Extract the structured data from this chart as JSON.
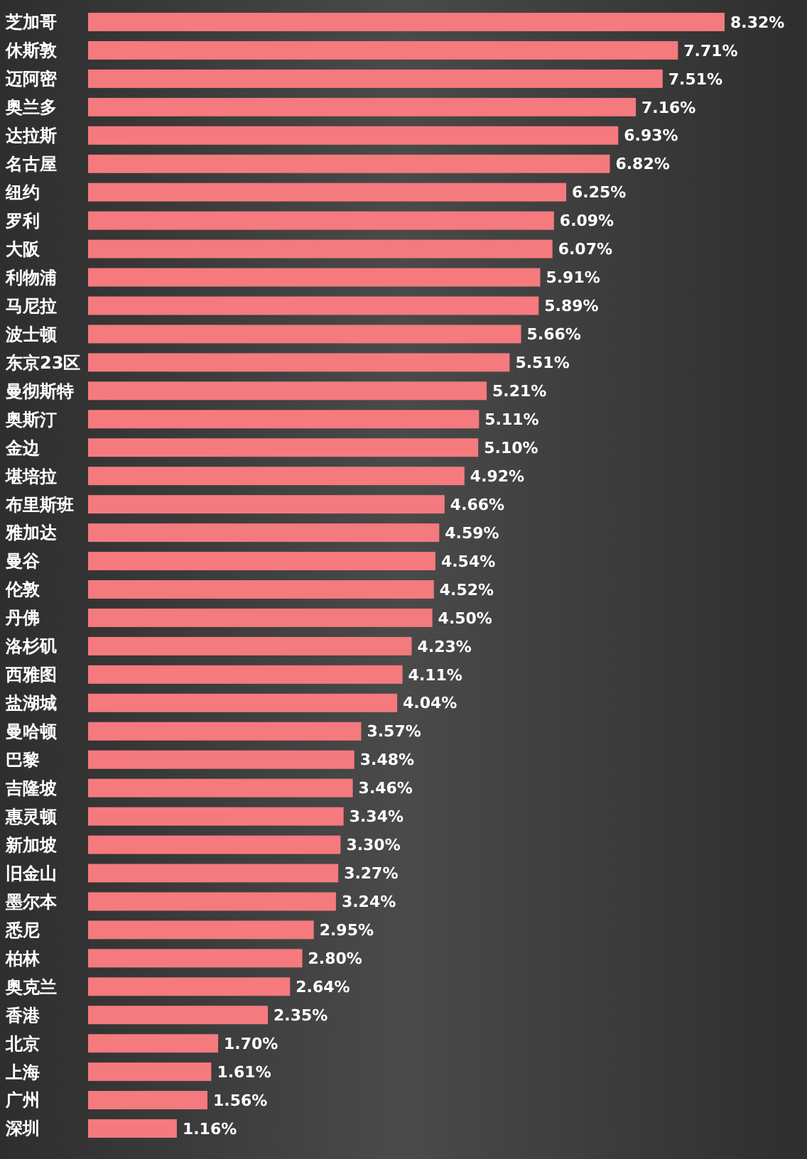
{
  "chart_data": {
    "type": "bar",
    "orientation": "horizontal",
    "color": "#f47a7e",
    "categories": [
      "芝加哥",
      "休斯敦",
      "迈阿密",
      "奥兰多",
      "达拉斯",
      "名古屋",
      "纽约",
      "罗利",
      "大阪",
      "利物浦",
      "马尼拉",
      "波士顿",
      "东京23区",
      "曼彻斯特",
      "奥斯汀",
      "金边",
      "堪培拉",
      "布里斯班",
      "雅加达",
      "曼谷",
      "伦敦",
      "丹佛",
      "洛杉矶",
      "西雅图",
      "盐湖城",
      "曼哈顿",
      "巴黎",
      "吉隆坡",
      "惠灵顿",
      "新加坡",
      "旧金山",
      "墨尔本",
      "悉尼",
      "柏林",
      "奥克兰",
      "香港",
      "北京",
      "上海",
      "广州",
      "深圳"
    ],
    "values": [
      8.32,
      7.71,
      7.51,
      7.16,
      6.93,
      6.82,
      6.25,
      6.09,
      6.07,
      5.91,
      5.89,
      5.66,
      5.51,
      5.21,
      5.11,
      5.1,
      4.92,
      4.66,
      4.59,
      4.54,
      4.52,
      4.5,
      4.23,
      4.11,
      4.04,
      3.57,
      3.48,
      3.46,
      3.34,
      3.3,
      3.27,
      3.24,
      2.95,
      2.8,
      2.64,
      2.35,
      1.7,
      1.61,
      1.56,
      1.16
    ],
    "value_labels": [
      "8.32%",
      "7.71%",
      "7.51%",
      "7.16%",
      "6.93%",
      "6.82%",
      "6.25%",
      "6.09%",
      "6.07%",
      "5.91%",
      "5.89%",
      "5.66%",
      "5.51%",
      "5.21%",
      "5.11%",
      "5.10%",
      "4.92%",
      "4.66%",
      "4.59%",
      "4.54%",
      "4.52%",
      "4.50%",
      "4.23%",
      "4.11%",
      "4.04%",
      "3.57%",
      "3.48%",
      "3.46%",
      "3.34%",
      "3.30%",
      "3.27%",
      "3.24%",
      "2.95%",
      "2.80%",
      "2.64%",
      "2.35%",
      "1.70%",
      "1.61%",
      "1.56%",
      "1.16%"
    ]
  }
}
